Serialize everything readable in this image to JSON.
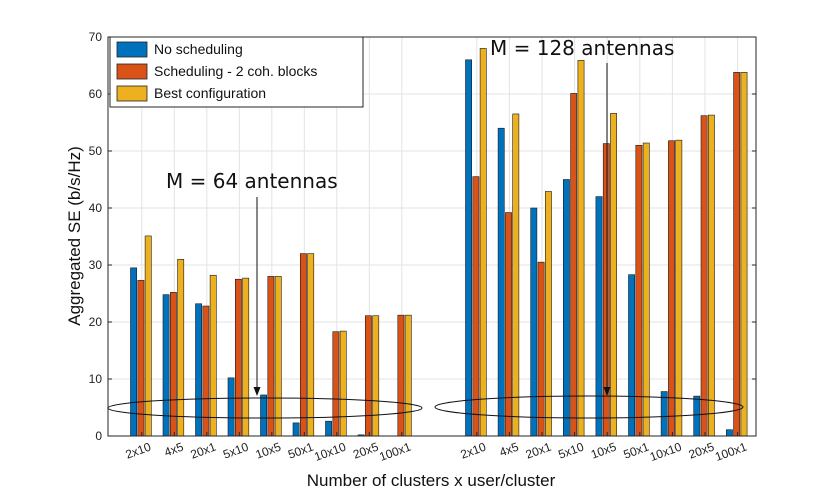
{
  "chart_data": {
    "type": "bar",
    "title": "",
    "xlabel": "Number of clusters x user/cluster",
    "ylabel": "Aggregated SE (b/s/Hz)",
    "ylim": [
      0,
      70
    ],
    "yticks": [
      0,
      10,
      20,
      30,
      40,
      50,
      60,
      70
    ],
    "grid": true,
    "legend_position": "top-left",
    "groups": [
      {
        "name": "M = 64 antennas",
        "annotation_label": "M = 64 antennas",
        "arrow_target_category": "10x5",
        "categories": [
          "2x10",
          "4x5",
          "20x1",
          "5x10",
          "10x5",
          "50x1",
          "10x10",
          "20x5",
          "100x1"
        ],
        "series": [
          {
            "name": "No scheduling",
            "color": "#0072BD",
            "values": [
              29.5,
              24.8,
              23.2,
              10.2,
              7.2,
              2.3,
              2.6,
              0.2,
              0
            ]
          },
          {
            "name": "Scheduling - 2 coh. blocks",
            "color": "#D95319",
            "values": [
              27.3,
              25.2,
              22.8,
              27.5,
              28.0,
              32.0,
              18.3,
              21.1,
              21.2
            ]
          },
          {
            "name": "Best configuration",
            "color": "#EDB120",
            "values": [
              35.1,
              31.0,
              28.2,
              27.7,
              28.0,
              32.0,
              18.4,
              21.1,
              21.2
            ]
          }
        ]
      },
      {
        "name": "M = 128 antennas",
        "annotation_label": "M = 128 antennas",
        "arrow_target_category": "10x5",
        "categories": [
          "2x10",
          "4x5",
          "20x1",
          "5x10",
          "10x5",
          "50x1",
          "10x10",
          "20x5",
          "100x1"
        ],
        "series": [
          {
            "name": "No scheduling",
            "color": "#0072BD",
            "values": [
              66.0,
              54.0,
              40.0,
              45.0,
              42.0,
              28.3,
              7.8,
              7.0,
              1.1
            ]
          },
          {
            "name": "Scheduling - 2 coh. blocks",
            "color": "#D95319",
            "values": [
              45.5,
              39.2,
              30.5,
              60.1,
              51.3,
              51.0,
              51.8,
              56.2,
              63.8
            ]
          },
          {
            "name": "Best configuration",
            "color": "#EDB120",
            "values": [
              68.0,
              56.5,
              42.9,
              65.9,
              56.6,
              51.4,
              51.9,
              56.3,
              63.8
            ]
          }
        ]
      }
    ],
    "legend": [
      "No scheduling",
      "Scheduling - 2 coh. blocks",
      "Best configuration"
    ]
  }
}
